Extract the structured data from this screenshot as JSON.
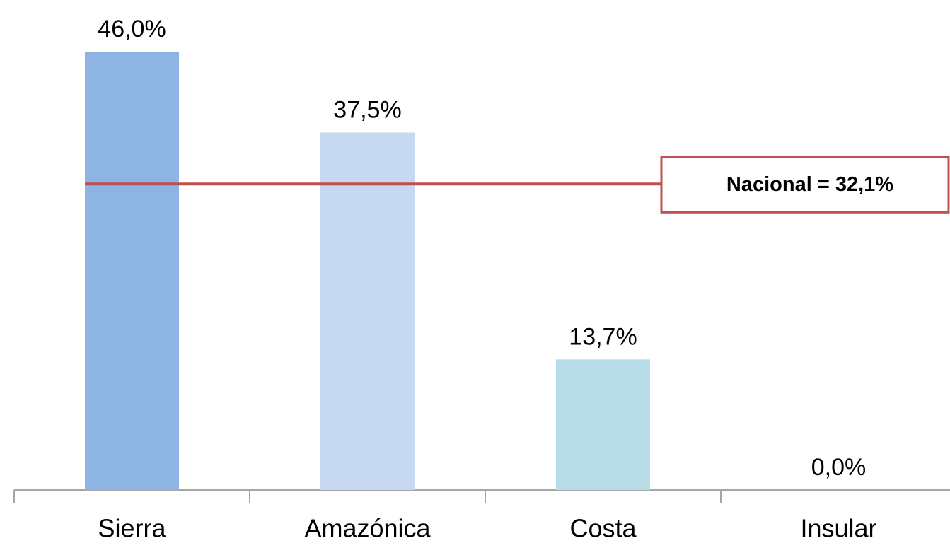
{
  "chart_data": {
    "type": "bar",
    "categories": [
      "Sierra",
      "Amazónica",
      "Costa",
      "Insular"
    ],
    "values": [
      46.0,
      37.5,
      13.7,
      0.0
    ],
    "value_labels": [
      "46,0%",
      "37,5%",
      "13,7%",
      "0,0%"
    ],
    "colors": [
      "#8eb4e3",
      "#c6d9f1",
      "#b7dde8",
      "#8eb4e3"
    ],
    "ylim": [
      0,
      50
    ],
    "reference_line": {
      "value": 32.1,
      "label": "Nacional = 32,1%",
      "color": "#c0504d"
    }
  }
}
